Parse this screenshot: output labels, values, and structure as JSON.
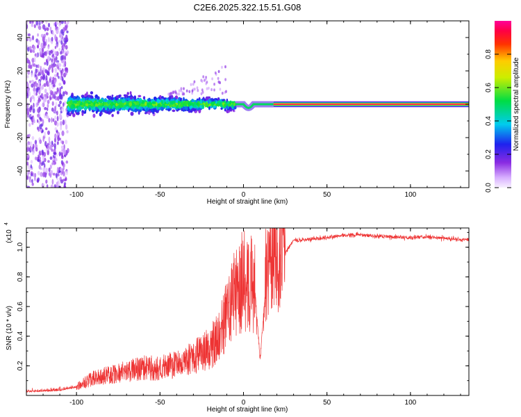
{
  "title": "C2E6.2025.322.15.51.G08",
  "chart_data": [
    {
      "type": "heatmap",
      "name": "spectrogram",
      "xlabel": "Height of straight line (km)",
      "ylabel": "Frequency (Hz)",
      "xlim": [
        -130,
        135
      ],
      "ylim": [
        -50,
        50
      ],
      "xticks": [
        -100,
        -50,
        0,
        50,
        100
      ],
      "yticks": [
        -40,
        -20,
        0,
        20,
        40
      ],
      "colorbar": {
        "label": "Normalized spectral amplitude",
        "range": [
          0,
          1
        ],
        "ticks": [
          0.0,
          0.2,
          0.4,
          0.6,
          0.8
        ],
        "tick_labels": [
          "0.0",
          "0.2",
          "0.4",
          "0.6",
          "0.8"
        ]
      },
      "features": {
        "carrier_line": {
          "x_from": 18,
          "x_to": 135,
          "frequency": 0,
          "amplitude": 1.0
        },
        "noisy_band": {
          "x_from": -105,
          "x_to": -5,
          "frequency_spread": 8,
          "amplitude": 0.45
        },
        "scatter_region": {
          "x_from": -130,
          "x_to": -105,
          "frequency_spread": 50,
          "amplitude": 0.1
        }
      }
    },
    {
      "type": "line",
      "name": "snr",
      "xlabel": "Height of straight line (km)",
      "ylabel": "SNR (10 * v/v)",
      "scale_label": "(x10",
      "scale_exponent": "4",
      "xlim": [
        -130,
        135
      ],
      "ylim": [
        0,
        11300
      ],
      "xticks": [
        -100,
        -50,
        0,
        50,
        100
      ],
      "yticks": [
        2000,
        4000,
        6000,
        8000,
        10000
      ],
      "ytick_labels": [
        "0.2",
        "0.4",
        "0.6",
        "0.8",
        "1.0"
      ],
      "color": "#ee3333",
      "trend": {
        "x": [
          -130,
          -110,
          -100,
          -90,
          -80,
          -70,
          -60,
          -50,
          -40,
          -30,
          -20,
          -15,
          -10,
          -5,
          0,
          5,
          10,
          15,
          20,
          25,
          30,
          40,
          50,
          60,
          70,
          80,
          90,
          100,
          110,
          120,
          135
        ],
        "y": [
          200,
          300,
          500,
          1000,
          1200,
          1400,
          1600,
          1600,
          1800,
          2200,
          2800,
          3400,
          4600,
          6000,
          6800,
          6500,
          6200,
          7600,
          8600,
          9600,
          10450,
          10550,
          10650,
          10800,
          10850,
          10750,
          10700,
          10650,
          10700,
          10600,
          10500
        ]
      },
      "dip": {
        "x": 10,
        "y": 2200
      }
    }
  ]
}
